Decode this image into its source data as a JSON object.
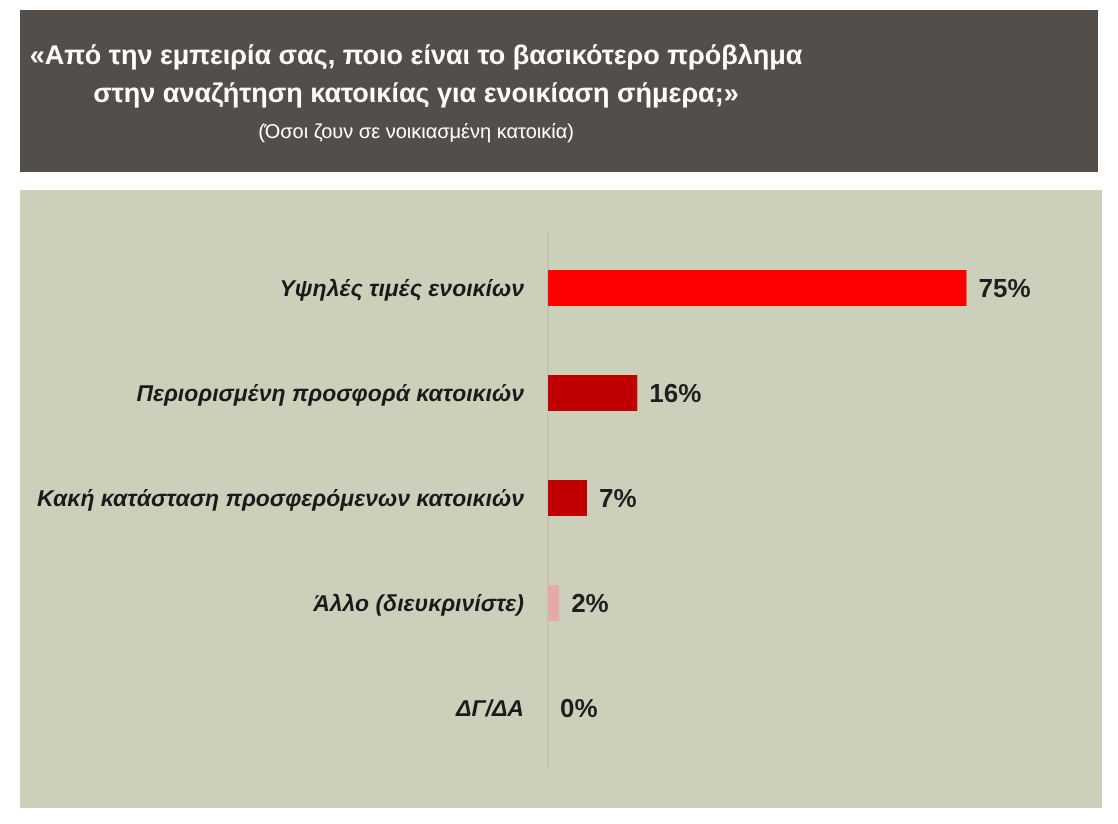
{
  "chart_data": {
    "type": "bar",
    "orientation": "horizontal",
    "title": "«Από την εμπειρία σας, ποιο είναι το βασικότερο πρόβλημα\nστην αναζήτηση κατοικίας για ενοικίαση σήμερα;»",
    "subtitle": "(Όσοι ζουν σε νοικιασμένη κατοικία)",
    "categories": [
      "Υψηλές τιμές ενοικίων",
      "Περιορισμένη προσφορά κατοικιών",
      "Κακή κατάσταση προσφερόμενων κατοικιών",
      "Άλλο (διευκρινίστε)",
      "ΔΓ/ΔΑ"
    ],
    "values": [
      75,
      16,
      7,
      2,
      0
    ],
    "colors": [
      "#ff0000",
      "#c00000",
      "#c00000",
      "#e6a9a6",
      null
    ],
    "value_labels": [
      "75%",
      "16%",
      "7%",
      "2%",
      "0%"
    ],
    "xlim": [
      0,
      100
    ],
    "tick_labels": "y"
  }
}
